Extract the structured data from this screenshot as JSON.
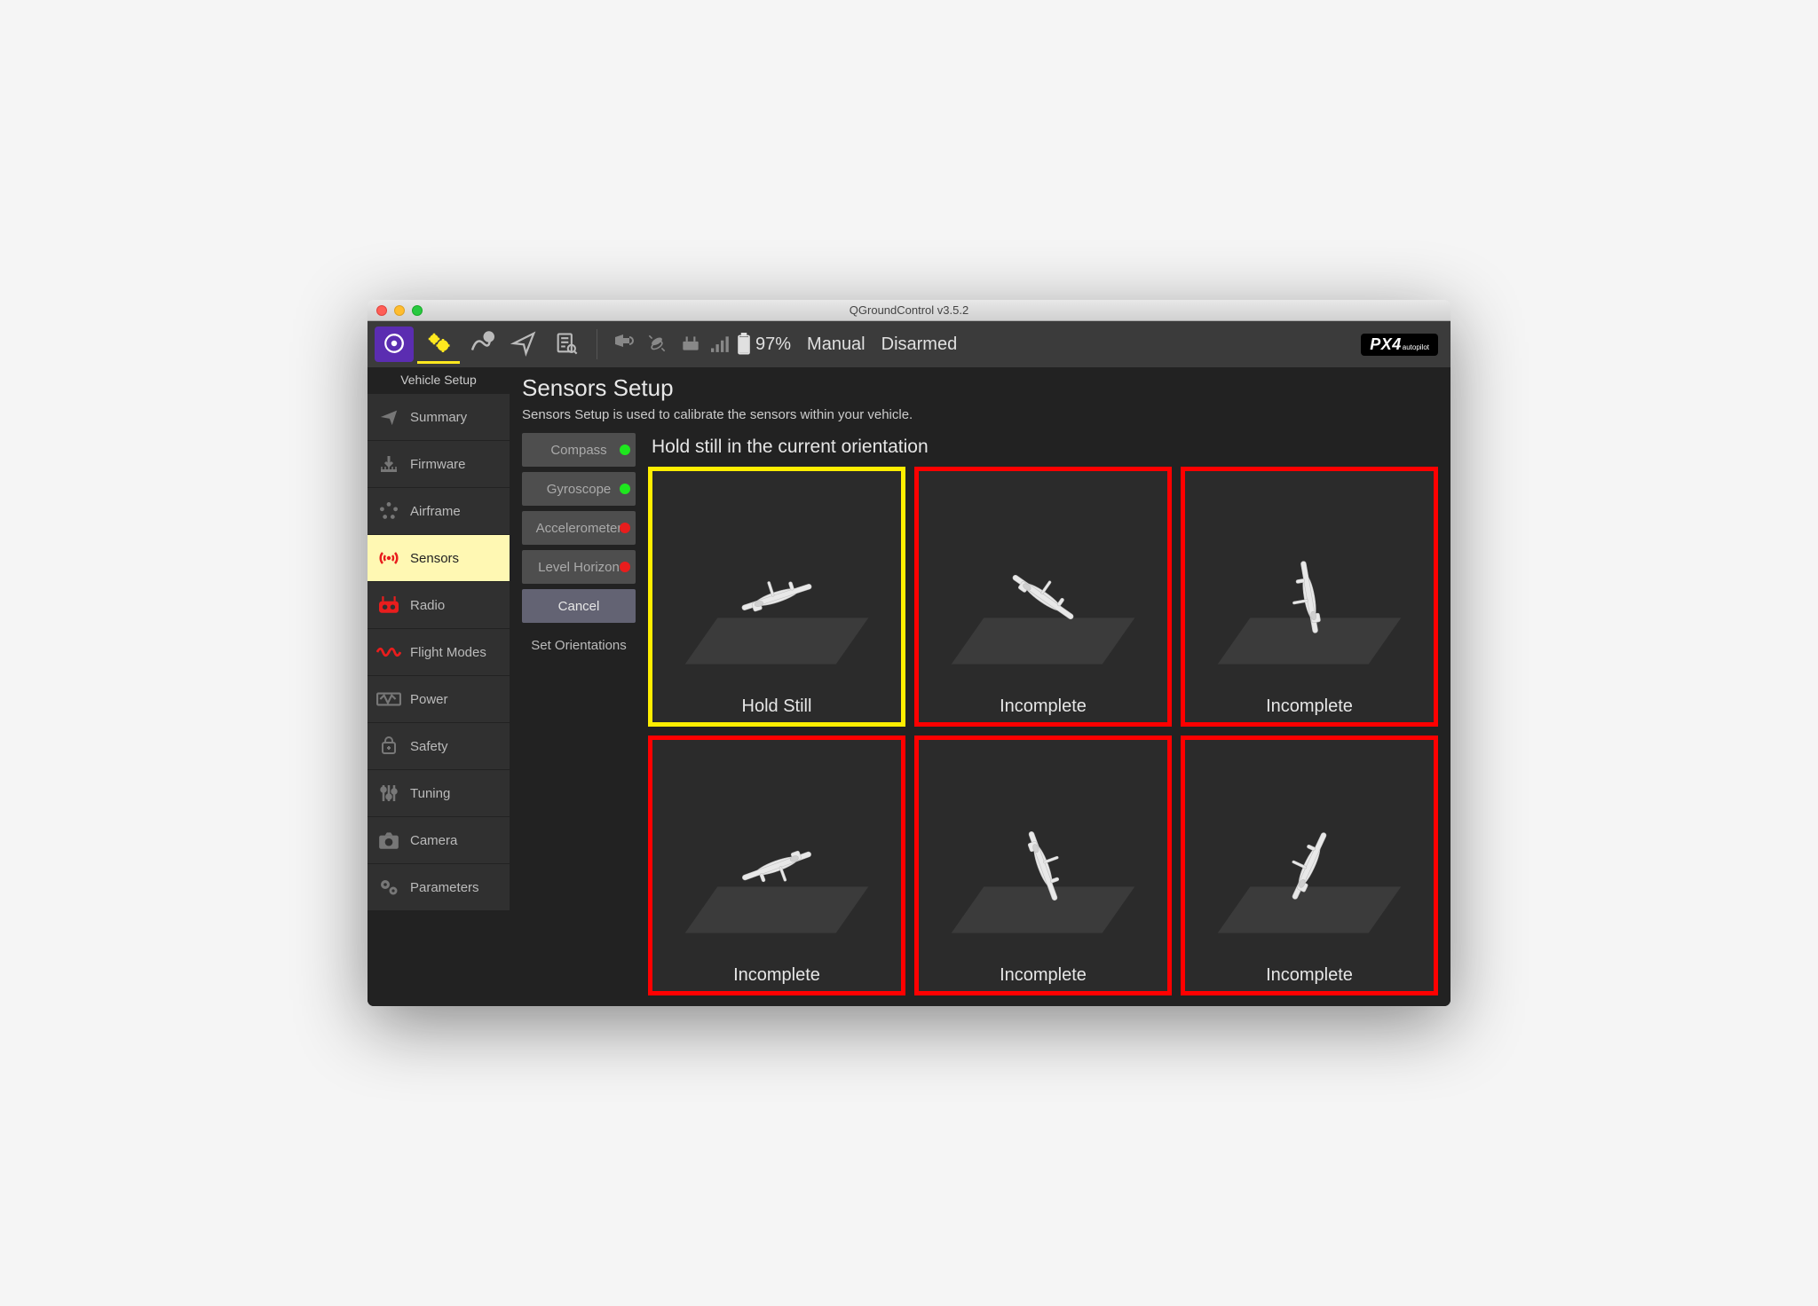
{
  "window": {
    "title": "QGroundControl v3.5.2"
  },
  "toolbar": {
    "battery_pct": "97%",
    "flight_mode": "Manual",
    "arm_state": "Disarmed",
    "brand": "PX4",
    "brand_sub": "autopilot"
  },
  "sidebar": {
    "title": "Vehicle Setup",
    "items": [
      {
        "label": "Summary",
        "icon": "plane"
      },
      {
        "label": "Firmware",
        "icon": "download"
      },
      {
        "label": "Airframe",
        "icon": "dots"
      },
      {
        "label": "Sensors",
        "icon": "radar",
        "active": true
      },
      {
        "label": "Radio",
        "icon": "radio",
        "red": true
      },
      {
        "label": "Flight Modes",
        "icon": "wave",
        "red": true
      },
      {
        "label": "Power",
        "icon": "power"
      },
      {
        "label": "Safety",
        "icon": "safety"
      },
      {
        "label": "Tuning",
        "icon": "sliders"
      },
      {
        "label": "Camera",
        "icon": "camera"
      },
      {
        "label": "Parameters",
        "icon": "gears"
      }
    ]
  },
  "main": {
    "title": "Sensors Setup",
    "subtitle": "Sensors Setup is used to calibrate the sensors within your vehicle.",
    "sensor_tabs": [
      {
        "label": "Compass",
        "status": "green"
      },
      {
        "label": "Gyroscope",
        "status": "green"
      },
      {
        "label": "Accelerometer",
        "status": "red"
      },
      {
        "label": "Level Horizon",
        "status": "red"
      },
      {
        "label": "Cancel",
        "status": null,
        "selected": true
      },
      {
        "label": "Set Orientations",
        "status": null,
        "plain": true
      }
    ],
    "instruction": "Hold still in the current orientation",
    "cells": [
      {
        "label": "Hold Still",
        "state": "active",
        "orient": "level"
      },
      {
        "label": "Incomplete",
        "state": "incomplete",
        "orient": "nosedown"
      },
      {
        "label": "Incomplete",
        "state": "incomplete",
        "orient": "tailstand"
      },
      {
        "label": "Incomplete",
        "state": "incomplete",
        "orient": "inverted"
      },
      {
        "label": "Incomplete",
        "state": "incomplete",
        "orient": "leftside"
      },
      {
        "label": "Incomplete",
        "state": "incomplete",
        "orient": "rightside"
      }
    ]
  },
  "colors": {
    "border_active": "#ffee00",
    "border_incomplete": "#ff0000",
    "status_green": "#1ee61e",
    "status_red": "#e81d1d"
  }
}
